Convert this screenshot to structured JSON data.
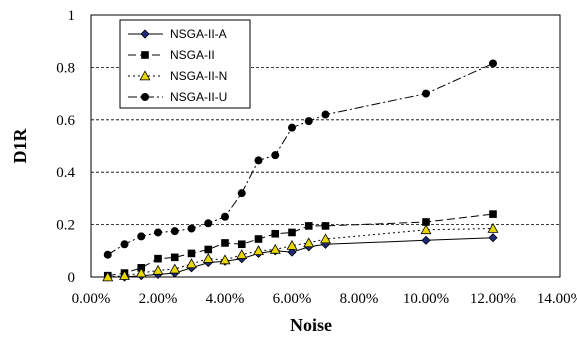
{
  "chart_data": {
    "type": "line",
    "title": "",
    "xlabel": "Noise",
    "ylabel": "D1R",
    "xlim": [
      0,
      0.14
    ],
    "ylim": [
      0,
      1
    ],
    "x_ticks": [
      "0.00%",
      "2.00%",
      "4.00%",
      "6.00%",
      "8.00%",
      "10.00%",
      "12.00%",
      "14.00%"
    ],
    "x_tick_values": [
      0,
      0.02,
      0.04,
      0.06,
      0.08,
      0.1,
      0.12,
      0.14
    ],
    "y_ticks": [
      "0",
      "0.2",
      "0.4",
      "0.6",
      "0.8",
      "1"
    ],
    "y_tick_values": [
      0,
      0.2,
      0.4,
      0.6,
      0.8,
      1
    ],
    "grid": "horizontal dashed",
    "legend_position": "top-left",
    "series": [
      {
        "name": "NSGA-II-A",
        "marker": "diamond",
        "line": "solid",
        "color": "#1f1f5c",
        "x": [
          0.005,
          0.01,
          0.015,
          0.02,
          0.025,
          0.03,
          0.035,
          0.04,
          0.045,
          0.05,
          0.055,
          0.06,
          0.065,
          0.07,
          0.1,
          0.12
        ],
        "y": [
          0.0,
          0.0,
          0.005,
          0.01,
          0.015,
          0.035,
          0.055,
          0.06,
          0.07,
          0.09,
          0.1,
          0.095,
          0.115,
          0.125,
          0.14,
          0.15
        ]
      },
      {
        "name": "NSGA-II",
        "marker": "square",
        "line": "dash",
        "color": "#000000",
        "x": [
          0.005,
          0.01,
          0.015,
          0.02,
          0.025,
          0.03,
          0.035,
          0.04,
          0.045,
          0.05,
          0.055,
          0.06,
          0.065,
          0.07,
          0.1,
          0.12
        ],
        "y": [
          0.005,
          0.015,
          0.035,
          0.07,
          0.075,
          0.09,
          0.105,
          0.13,
          0.125,
          0.145,
          0.165,
          0.17,
          0.195,
          0.195,
          0.21,
          0.24
        ]
      },
      {
        "name": "NSGA-II-N",
        "marker": "triangle",
        "line": "dot",
        "color": "#e8d800",
        "x": [
          0.005,
          0.01,
          0.015,
          0.02,
          0.025,
          0.03,
          0.035,
          0.04,
          0.045,
          0.05,
          0.055,
          0.06,
          0.065,
          0.07,
          0.1,
          0.12
        ],
        "y": [
          0.0,
          0.005,
          0.015,
          0.025,
          0.03,
          0.05,
          0.07,
          0.065,
          0.085,
          0.1,
          0.105,
          0.12,
          0.13,
          0.145,
          0.18,
          0.185
        ]
      },
      {
        "name": "NSGA-II-U",
        "marker": "circle",
        "line": "dashdot",
        "color": "#000000",
        "x": [
          0.005,
          0.01,
          0.015,
          0.02,
          0.025,
          0.03,
          0.035,
          0.04,
          0.045,
          0.05,
          0.055,
          0.06,
          0.065,
          0.07,
          0.1,
          0.12
        ],
        "y": [
          0.085,
          0.125,
          0.155,
          0.17,
          0.175,
          0.185,
          0.205,
          0.23,
          0.32,
          0.445,
          0.465,
          0.57,
          0.595,
          0.62,
          0.7,
          0.815
        ]
      }
    ]
  }
}
